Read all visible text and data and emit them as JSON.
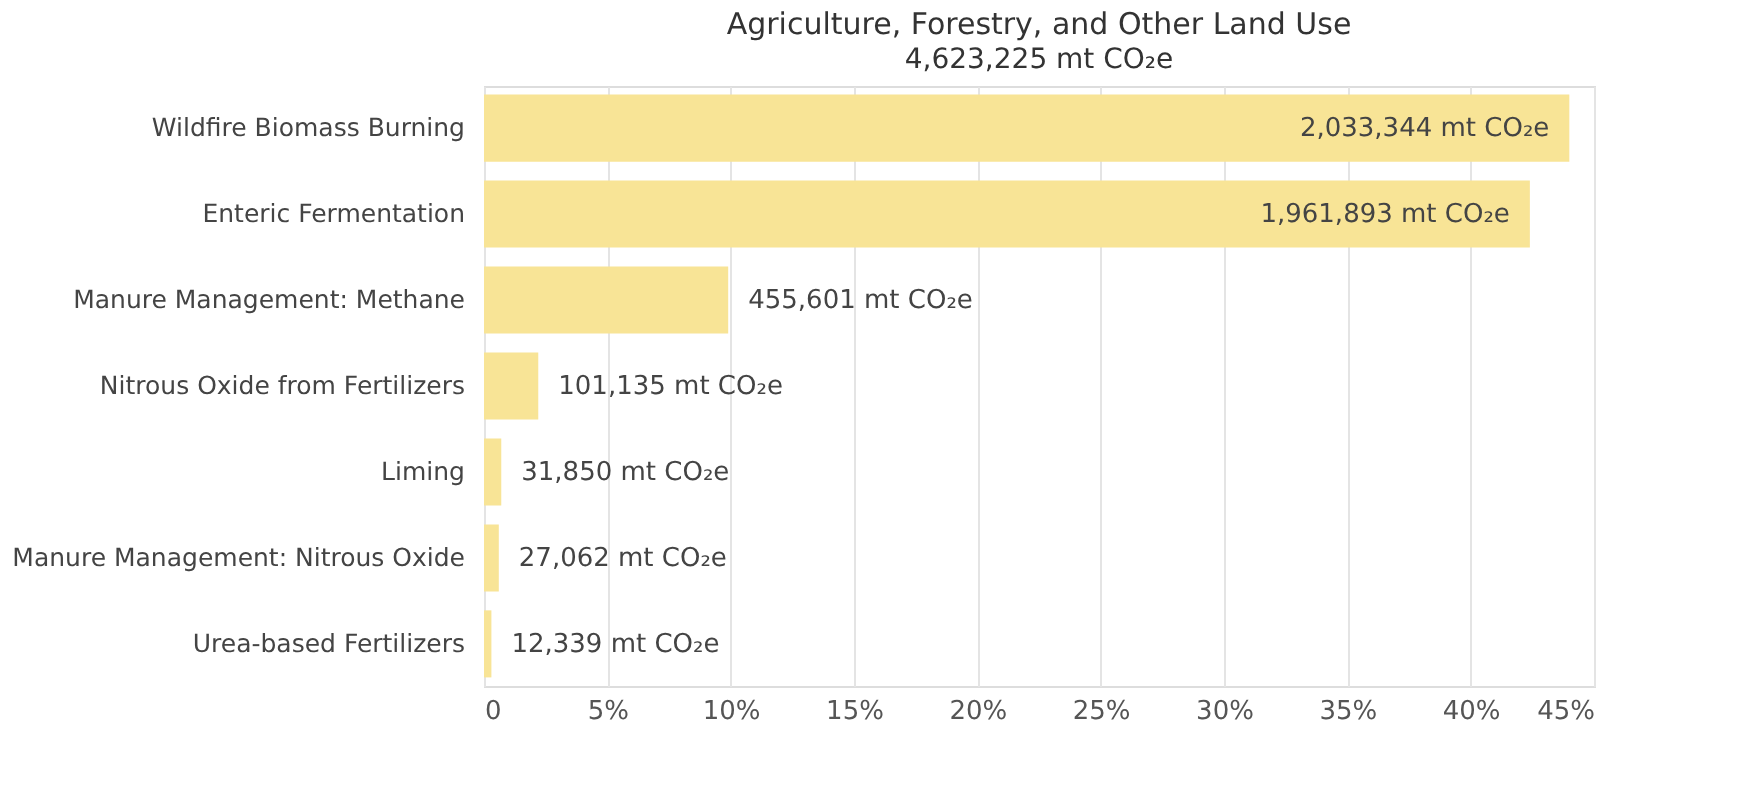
{
  "chart_data": {
    "type": "bar",
    "orientation": "horizontal",
    "title": "Agriculture, Forestry, and Other Land Use",
    "subtitle": "4,623,225 mt CO₂e",
    "categories": [
      "Wildfire Biomass Burning",
      "Enteric Fermentation",
      "Manure Management: Methane",
      "Nitrous Oxide from Fertilizers",
      "Liming",
      "Manure Management: Nitrous Oxide",
      "Urea-based Fertilizers"
    ],
    "values": [
      44.0,
      42.4,
      9.9,
      2.2,
      0.7,
      0.6,
      0.3
    ],
    "annotations": [
      {
        "text": "2,033,344 mt CO₂e",
        "x": 44.0,
        "y": "Wildfire Biomass Burning"
      },
      {
        "text": "1,961,893 mt CO₂e",
        "x": 42.4,
        "y": "Enteric Fermentation"
      },
      {
        "text": "455,601 mt CO₂e",
        "x": 9.9,
        "y": "Manure Management: Methane"
      },
      {
        "text": "101,135 mt CO₂e",
        "x": 2.2,
        "y": "Nitrous Oxide from Fertilizers"
      },
      {
        "text": "31,850 mt CO₂e",
        "x": 0.7,
        "y": "Liming"
      },
      {
        "text": "27,062 mt CO₂e",
        "x": 0.6,
        "y": "Manure Management: Nitrous Oxide"
      },
      {
        "text": "12,339 mt CO₂e",
        "x": 0.3,
        "y": "Urea-based Fertilizers"
      }
    ],
    "color": "#f8e496",
    "xlim": [
      0,
      45
    ],
    "xticks": [
      0,
      {
        "value": 5,
        "label": "5%"
      },
      {
        "value": 10,
        "label": "10%"
      },
      {
        "value": 15,
        "label": "15%"
      },
      {
        "value": 20,
        "label": "20%"
      },
      {
        "value": 25,
        "label": "25%"
      },
      {
        "value": 30,
        "label": "30%"
      },
      {
        "value": 35,
        "label": "35%"
      },
      {
        "value": 40,
        "label": "40%"
      },
      {
        "value": 45,
        "label": "45%"
      }
    ],
    "grid": "x"
  }
}
